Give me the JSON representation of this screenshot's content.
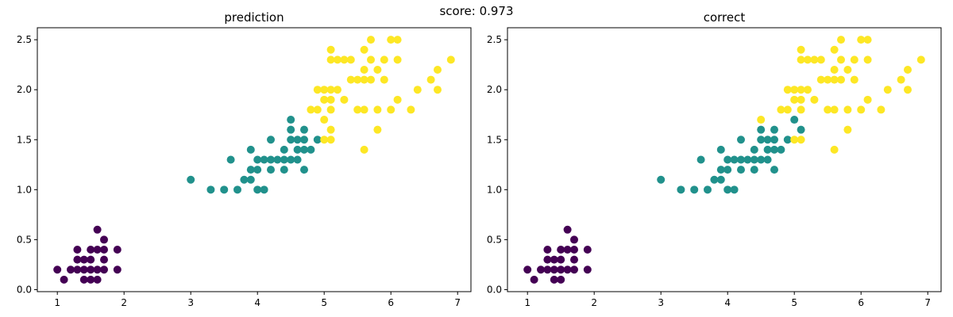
{
  "suptitle": "score: 0.973",
  "colors": {
    "class0": "#440154",
    "class1": "#21918c",
    "class2": "#fde725"
  },
  "chart_data": [
    {
      "type": "scatter",
      "title": "prediction",
      "xlim": [
        0.7,
        7.2
      ],
      "ylim": [
        -0.02,
        2.62
      ],
      "xticks": [
        1,
        2,
        3,
        4,
        5,
        6,
        7
      ],
      "xtick_labels": [
        "1",
        "2",
        "3",
        "4",
        "5",
        "6",
        "7"
      ],
      "yticks": [
        0.0,
        0.5,
        1.0,
        1.5,
        2.0,
        2.5
      ],
      "ytick_labels": [
        "0.0",
        "0.5",
        "1.0",
        "1.5",
        "2.0",
        "2.5"
      ],
      "series": [
        {
          "class": 0,
          "points": [
            [
              1.0,
              0.2
            ],
            [
              1.1,
              0.1
            ],
            [
              1.2,
              0.2
            ],
            [
              1.3,
              0.2
            ],
            [
              1.3,
              0.3
            ],
            [
              1.3,
              0.4
            ],
            [
              1.4,
              0.1
            ],
            [
              1.4,
              0.2
            ],
            [
              1.4,
              0.3
            ],
            [
              1.5,
              0.1
            ],
            [
              1.5,
              0.2
            ],
            [
              1.5,
              0.3
            ],
            [
              1.5,
              0.4
            ],
            [
              1.6,
              0.1
            ],
            [
              1.6,
              0.2
            ],
            [
              1.6,
              0.4
            ],
            [
              1.6,
              0.6
            ],
            [
              1.7,
              0.2
            ],
            [
              1.7,
              0.3
            ],
            [
              1.7,
              0.4
            ],
            [
              1.7,
              0.5
            ],
            [
              1.9,
              0.2
            ],
            [
              1.9,
              0.4
            ]
          ]
        },
        {
          "class": 1,
          "points": [
            [
              3.0,
              1.1
            ],
            [
              3.3,
              1.0
            ],
            [
              3.5,
              1.0
            ],
            [
              3.6,
              1.3
            ],
            [
              3.7,
              1.0
            ],
            [
              3.8,
              1.1
            ],
            [
              3.9,
              1.1
            ],
            [
              3.9,
              1.2
            ],
            [
              3.9,
              1.4
            ],
            [
              4.0,
              1.0
            ],
            [
              4.0,
              1.2
            ],
            [
              4.0,
              1.3
            ],
            [
              4.1,
              1.0
            ],
            [
              4.1,
              1.3
            ],
            [
              4.2,
              1.2
            ],
            [
              4.2,
              1.3
            ],
            [
              4.2,
              1.5
            ],
            [
              4.3,
              1.3
            ],
            [
              4.4,
              1.2
            ],
            [
              4.4,
              1.3
            ],
            [
              4.4,
              1.4
            ],
            [
              4.5,
              1.3
            ],
            [
              4.5,
              1.5
            ],
            [
              4.5,
              1.6
            ],
            [
              4.5,
              1.7
            ],
            [
              4.6,
              1.3
            ],
            [
              4.6,
              1.4
            ],
            [
              4.6,
              1.5
            ],
            [
              4.7,
              1.2
            ],
            [
              4.7,
              1.4
            ],
            [
              4.7,
              1.5
            ],
            [
              4.7,
              1.6
            ],
            [
              4.8,
              1.4
            ],
            [
              4.9,
              1.5
            ]
          ]
        },
        {
          "class": 2,
          "points": [
            [
              4.8,
              1.8
            ],
            [
              4.9,
              1.8
            ],
            [
              4.9,
              2.0
            ],
            [
              5.0,
              1.5
            ],
            [
              5.0,
              1.7
            ],
            [
              5.0,
              1.9
            ],
            [
              5.0,
              2.0
            ],
            [
              5.1,
              1.5
            ],
            [
              5.1,
              1.6
            ],
            [
              5.1,
              1.8
            ],
            [
              5.1,
              1.9
            ],
            [
              5.1,
              2.0
            ],
            [
              5.1,
              2.3
            ],
            [
              5.1,
              2.4
            ],
            [
              5.2,
              2.0
            ],
            [
              5.2,
              2.3
            ],
            [
              5.3,
              1.9
            ],
            [
              5.3,
              2.3
            ],
            [
              5.4,
              2.1
            ],
            [
              5.4,
              2.3
            ],
            [
              5.5,
              1.8
            ],
            [
              5.5,
              2.1
            ],
            [
              5.6,
              1.4
            ],
            [
              5.6,
              1.8
            ],
            [
              5.6,
              2.1
            ],
            [
              5.6,
              2.2
            ],
            [
              5.6,
              2.4
            ],
            [
              5.7,
              2.1
            ],
            [
              5.7,
              2.3
            ],
            [
              5.7,
              2.5
            ],
            [
              5.8,
              1.6
            ],
            [
              5.8,
              1.8
            ],
            [
              5.8,
              2.2
            ],
            [
              5.9,
              2.1
            ],
            [
              5.9,
              2.3
            ],
            [
              6.0,
              1.8
            ],
            [
              6.0,
              2.5
            ],
            [
              6.1,
              1.9
            ],
            [
              6.1,
              2.3
            ],
            [
              6.1,
              2.5
            ],
            [
              6.3,
              1.8
            ],
            [
              6.4,
              2.0
            ],
            [
              6.6,
              2.1
            ],
            [
              6.7,
              2.0
            ],
            [
              6.7,
              2.2
            ],
            [
              6.9,
              2.3
            ]
          ]
        }
      ]
    },
    {
      "type": "scatter",
      "title": "correct",
      "xlim": [
        0.7,
        7.2
      ],
      "ylim": [
        -0.02,
        2.62
      ],
      "xticks": [
        1,
        2,
        3,
        4,
        5,
        6,
        7
      ],
      "xtick_labels": [
        "1",
        "2",
        "3",
        "4",
        "5",
        "6",
        "7"
      ],
      "yticks": [
        0.0,
        0.5,
        1.0,
        1.5,
        2.0,
        2.5
      ],
      "ytick_labels": [
        "0.0",
        "0.5",
        "1.0",
        "1.5",
        "2.0",
        "2.5"
      ],
      "series": [
        {
          "class": 0,
          "points": [
            [
              1.0,
              0.2
            ],
            [
              1.1,
              0.1
            ],
            [
              1.2,
              0.2
            ],
            [
              1.3,
              0.2
            ],
            [
              1.3,
              0.3
            ],
            [
              1.3,
              0.4
            ],
            [
              1.4,
              0.1
            ],
            [
              1.4,
              0.2
            ],
            [
              1.4,
              0.3
            ],
            [
              1.5,
              0.1
            ],
            [
              1.5,
              0.2
            ],
            [
              1.5,
              0.3
            ],
            [
              1.5,
              0.4
            ],
            [
              1.6,
              0.2
            ],
            [
              1.6,
              0.4
            ],
            [
              1.6,
              0.6
            ],
            [
              1.7,
              0.2
            ],
            [
              1.7,
              0.3
            ],
            [
              1.7,
              0.4
            ],
            [
              1.7,
              0.5
            ],
            [
              1.9,
              0.2
            ],
            [
              1.9,
              0.4
            ]
          ]
        },
        {
          "class": 1,
          "points": [
            [
              3.0,
              1.1
            ],
            [
              3.3,
              1.0
            ],
            [
              3.5,
              1.0
            ],
            [
              3.6,
              1.3
            ],
            [
              3.7,
              1.0
            ],
            [
              3.8,
              1.1
            ],
            [
              3.9,
              1.1
            ],
            [
              3.9,
              1.2
            ],
            [
              3.9,
              1.4
            ],
            [
              4.0,
              1.0
            ],
            [
              4.0,
              1.2
            ],
            [
              4.0,
              1.3
            ],
            [
              4.1,
              1.0
            ],
            [
              4.1,
              1.3
            ],
            [
              4.2,
              1.2
            ],
            [
              4.2,
              1.3
            ],
            [
              4.2,
              1.5
            ],
            [
              4.3,
              1.3
            ],
            [
              4.4,
              1.2
            ],
            [
              4.4,
              1.3
            ],
            [
              4.4,
              1.4
            ],
            [
              4.5,
              1.3
            ],
            [
              4.5,
              1.5
            ],
            [
              4.5,
              1.6
            ],
            [
              4.6,
              1.3
            ],
            [
              4.6,
              1.4
            ],
            [
              4.6,
              1.5
            ],
            [
              4.7,
              1.2
            ],
            [
              4.7,
              1.4
            ],
            [
              4.7,
              1.5
            ],
            [
              4.7,
              1.6
            ],
            [
              4.8,
              1.4
            ],
            [
              4.9,
              1.5
            ],
            [
              5.0,
              1.7
            ],
            [
              5.1,
              1.6
            ]
          ]
        },
        {
          "class": 2,
          "points": [
            [
              4.5,
              1.7
            ],
            [
              4.8,
              1.8
            ],
            [
              4.9,
              1.8
            ],
            [
              4.9,
              2.0
            ],
            [
              5.0,
              1.5
            ],
            [
              5.0,
              1.9
            ],
            [
              5.0,
              2.0
            ],
            [
              5.1,
              1.5
            ],
            [
              5.1,
              1.8
            ],
            [
              5.1,
              1.9
            ],
            [
              5.1,
              2.0
            ],
            [
              5.1,
              2.3
            ],
            [
              5.1,
              2.4
            ],
            [
              5.2,
              2.0
            ],
            [
              5.2,
              2.3
            ],
            [
              5.3,
              1.9
            ],
            [
              5.3,
              2.3
            ],
            [
              5.4,
              2.1
            ],
            [
              5.4,
              2.3
            ],
            [
              5.5,
              1.8
            ],
            [
              5.5,
              2.1
            ],
            [
              5.6,
              1.4
            ],
            [
              5.6,
              1.8
            ],
            [
              5.6,
              2.1
            ],
            [
              5.6,
              2.2
            ],
            [
              5.6,
              2.4
            ],
            [
              5.7,
              2.1
            ],
            [
              5.7,
              2.3
            ],
            [
              5.7,
              2.5
            ],
            [
              5.8,
              1.6
            ],
            [
              5.8,
              1.8
            ],
            [
              5.8,
              2.2
            ],
            [
              5.9,
              2.1
            ],
            [
              5.9,
              2.3
            ],
            [
              6.0,
              1.8
            ],
            [
              6.0,
              2.5
            ],
            [
              6.1,
              1.9
            ],
            [
              6.1,
              2.3
            ],
            [
              6.1,
              2.5
            ],
            [
              6.3,
              1.8
            ],
            [
              6.4,
              2.0
            ],
            [
              6.6,
              2.1
            ],
            [
              6.7,
              2.0
            ],
            [
              6.7,
              2.2
            ],
            [
              6.9,
              2.3
            ]
          ]
        }
      ]
    }
  ]
}
